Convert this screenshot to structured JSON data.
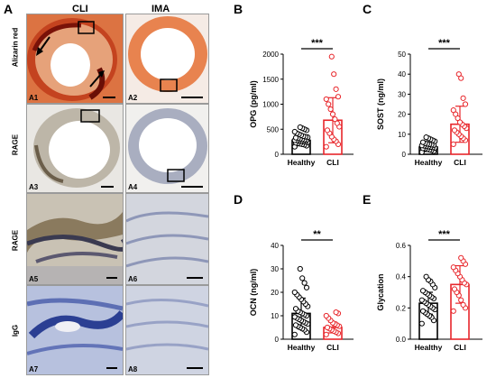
{
  "figure": {
    "panel_label_a": "A",
    "col_cli": "CLI",
    "col_ima": "IMA",
    "row_alizarin": "Alizarin red",
    "row_rage_1": "RAGE",
    "row_rage_2": "RAGE",
    "row_igg": "IgG",
    "tiles": [
      "A1",
      "A2",
      "A3",
      "A4",
      "A5",
      "A6",
      "A7",
      "A8"
    ]
  },
  "colors": {
    "healthy_bar": "#000000",
    "cli_bar": "#e8262b",
    "alizarin_bg": "#e48a57",
    "alizarin_dark": "#a8280f",
    "stain_bg": "#cfd3dc",
    "stain_blue": "#5a6fb0"
  },
  "chart_data": [
    {
      "panel": "B",
      "type": "bar",
      "categories": [
        "Healthy",
        "CLI"
      ],
      "values": [
        280,
        680
      ],
      "errors": [
        110,
        450
      ],
      "ylabel": "OPG (pg/ml)",
      "ylim": [
        0,
        2000
      ],
      "yticks": [
        "0",
        "500",
        "1000",
        "1500",
        "2000"
      ],
      "significance": "***",
      "points": [
        [
          150,
          170,
          190,
          200,
          210,
          220,
          230,
          240,
          250,
          255,
          260,
          270,
          275,
          280,
          285,
          290,
          300,
          310,
          320,
          330,
          340,
          350,
          360,
          380,
          400,
          420,
          450,
          480,
          500,
          520,
          540
        ],
        [
          150,
          200,
          260,
          300,
          350,
          420,
          480,
          550,
          620,
          700,
          800,
          900,
          1000,
          1100,
          1150,
          1300,
          1600,
          1950
        ]
      ]
    },
    {
      "panel": "C",
      "type": "bar",
      "categories": [
        "Healthy",
        "CLI"
      ],
      "values": [
        3.6,
        15
      ],
      "errors": [
        2.2,
        9
      ],
      "ylabel": "SOST (ng/ml)",
      "ylim": [
        0,
        50
      ],
      "yticks": [
        "0",
        "10",
        "20",
        "30",
        "40",
        "50"
      ],
      "significance": "***",
      "points": [
        [
          1,
          1.5,
          2,
          2.2,
          2.5,
          2.8,
          3,
          3.2,
          3.4,
          3.6,
          3.8,
          4,
          4.2,
          4.4,
          4.6,
          4.8,
          5,
          5.2,
          5.5,
          6,
          6.5,
          7,
          7.5,
          8,
          8.5
        ],
        [
          5,
          7,
          8,
          9,
          10,
          11,
          12,
          13,
          14,
          15,
          16,
          18,
          20,
          22,
          25,
          28,
          38,
          40
        ]
      ]
    },
    {
      "panel": "D",
      "type": "bar",
      "categories": [
        "Healthy",
        "CLI"
      ],
      "values": [
        11,
        5
      ],
      "errors": [
        6.5,
        2.3
      ],
      "ylabel": "OCN (ng/ml)",
      "ylim": [
        0,
        40
      ],
      "yticks": [
        "0",
        "10",
        "20",
        "30",
        "40"
      ],
      "significance": "**",
      "points": [
        [
          2,
          3,
          4,
          4.5,
          5,
          5.5,
          6,
          6.5,
          7,
          7.5,
          8,
          8.5,
          9,
          9.5,
          10,
          10.5,
          11,
          11.5,
          12,
          13,
          14,
          15,
          16,
          17,
          18,
          19,
          20,
          22,
          24,
          26,
          30
        ],
        [
          2,
          2.5,
          3,
          3.5,
          4,
          4.5,
          5,
          5.5,
          6,
          6.5,
          7,
          8,
          9,
          10,
          11,
          11.5
        ]
      ]
    },
    {
      "panel": "E",
      "type": "bar",
      "categories": [
        "Healthy",
        "CLI"
      ],
      "values": [
        0.23,
        0.35
      ],
      "errors": [
        0.07,
        0.12
      ],
      "ylabel": "Glycation",
      "ylim": [
        0,
        0.6
      ],
      "yticks": [
        "0.0",
        "0.2",
        "0.4",
        "0.6"
      ],
      "significance": "***",
      "points": [
        [
          0.1,
          0.12,
          0.14,
          0.15,
          0.16,
          0.17,
          0.18,
          0.19,
          0.2,
          0.21,
          0.22,
          0.23,
          0.24,
          0.25,
          0.26,
          0.27,
          0.28,
          0.29,
          0.3,
          0.31,
          0.33,
          0.35,
          0.37,
          0.38,
          0.4
        ],
        [
          0.18,
          0.2,
          0.22,
          0.25,
          0.28,
          0.3,
          0.32,
          0.35,
          0.36,
          0.38,
          0.4,
          0.42,
          0.44,
          0.46,
          0.48,
          0.5,
          0.52
        ]
      ]
    }
  ]
}
